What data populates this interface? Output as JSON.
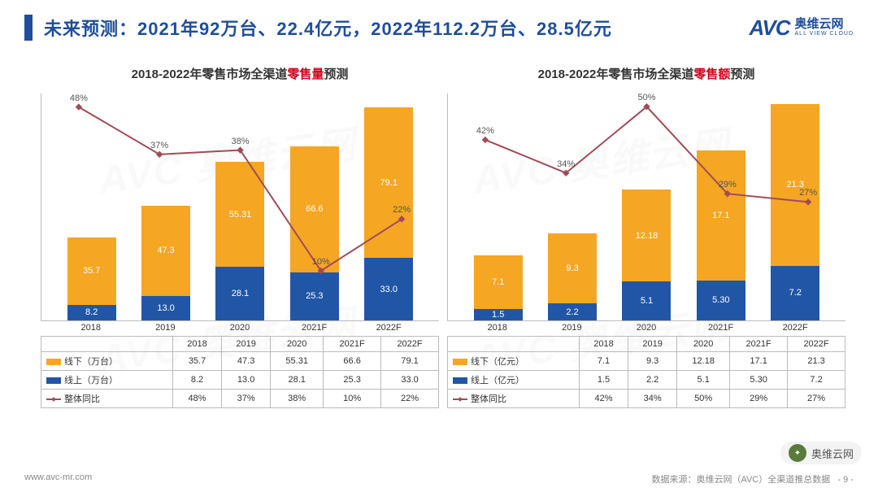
{
  "header": {
    "title": "未来预测：2021年92万台、22.4亿元，2022年112.2万台、28.5亿元",
    "logo_avc": "AVC",
    "logo_cn": "奥维云网",
    "logo_sub": "ALL VIEW CLOUD"
  },
  "colors": {
    "accent": "#1f4e9b",
    "offline": "#f5a623",
    "online": "#2156a6",
    "line": "#a14b57",
    "grid": "#bbbbbb",
    "background": "#ffffff",
    "red": "#d0021b"
  },
  "chart_left": {
    "type": "stacked-bar+line",
    "title_prefix": "2018-2022年零售市场全渠道",
    "title_red": "零售量",
    "title_suffix": "预测",
    "categories": [
      "2018",
      "2019",
      "2020",
      "2021F",
      "2022F"
    ],
    "offline_label": "线下（万台）",
    "online_label": "线上（万台）",
    "growth_label": "整体同比",
    "offline": [
      35.7,
      47.3,
      55.31,
      66.6,
      79.1
    ],
    "online": [
      8.2,
      13.0,
      28.1,
      25.3,
      33.0
    ],
    "growth_pct": [
      "48%",
      "37%",
      "38%",
      "10%",
      "22%"
    ],
    "growth_val": [
      48,
      37,
      38,
      10,
      22
    ],
    "bar_max": 120,
    "line_max": 50,
    "offline_disp": [
      "35.7",
      "47.3",
      "55.31",
      "66.6",
      "79.1"
    ],
    "online_disp": [
      "8.2",
      "13.0",
      "28.1",
      "25.3",
      "33.0"
    ]
  },
  "chart_right": {
    "type": "stacked-bar+line",
    "title_prefix": "2018-2022年零售市场全渠道",
    "title_red": "零售额",
    "title_suffix": "预测",
    "categories": [
      "2018",
      "2019",
      "2020",
      "2021F",
      "2022F"
    ],
    "offline_label": "线下（亿元）",
    "online_label": "线上（亿元）",
    "growth_label": "整体同比",
    "offline": [
      7.1,
      9.3,
      12.18,
      17.1,
      21.3
    ],
    "online": [
      1.5,
      2.2,
      5.1,
      5.3,
      7.2
    ],
    "growth_pct": [
      "42%",
      "34%",
      "50%",
      "29%",
      "27%"
    ],
    "growth_val": [
      42,
      34,
      50,
      29,
      27
    ],
    "bar_max": 30,
    "line_max": 52,
    "offline_disp": [
      "7.1",
      "9.3",
      "12.18",
      "17.1",
      "21.3"
    ],
    "online_disp": [
      "1.5",
      "2.2",
      "5.1",
      "5.30",
      "7.2"
    ]
  },
  "footer": {
    "url": "www.avc-mr.com",
    "source": "数据来源：奥维云网（AVC）全渠道推总数据",
    "page": "- 9 -"
  },
  "watermark": {
    "text": "AVC 奥维云网",
    "badge": "奥维云网"
  }
}
